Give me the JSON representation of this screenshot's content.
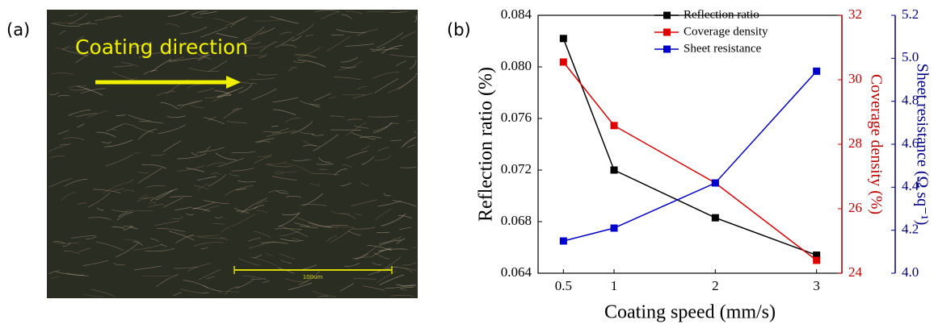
{
  "panel_a": {
    "label": "(a)",
    "annotation": "Coating direction",
    "scale_bar": "100um"
  },
  "chart_data": {
    "type": "line",
    "panel_label": "(b)",
    "xlabel": "Coating speed (mm/s)",
    "ylabel": "Reflection ratio (%)",
    "y2label": "Coverage density (%)",
    "y3label": "Sheet resistance (Ω sq⁻¹)",
    "x": [
      0.5,
      1,
      2,
      3
    ],
    "xlim": [
      0.25,
      3.25
    ],
    "xticks": [
      0.5,
      1,
      2,
      3
    ],
    "ylim": [
      0.064,
      0.084
    ],
    "yticks": [
      0.064,
      0.068,
      0.072,
      0.076,
      {
        "value": 0.08,
        "label": "0.080"
      },
      0.084
    ],
    "y2lim": [
      24,
      32
    ],
    "y2ticks": [
      24,
      26,
      28,
      30,
      32
    ],
    "y2color": "#c00000",
    "y3lim": [
      4.0,
      5.2
    ],
    "y3ticks": [
      {
        "value": 4.0,
        "label": "4.0"
      },
      {
        "value": 4.2,
        "label": "4.2"
      },
      {
        "value": 4.4,
        "label": "4.4"
      },
      {
        "value": 4.6,
        "label": "4.6"
      },
      {
        "value": 4.8,
        "label": "4.8"
      },
      {
        "value": 5.0,
        "label": "5.0"
      },
      {
        "value": 5.2,
        "label": "5.2"
      }
    ],
    "y3color": "#00008b",
    "legend": "top-right",
    "series": [
      {
        "name": "Reflection ratio",
        "color": "#000000",
        "values": [
          0.0822,
          0.072,
          0.0683,
          0.0654
        ]
      },
      {
        "name": "Coverage density",
        "color": "#e00000",
        "axis": "y2",
        "values": [
          30.55,
          28.58,
          26.8,
          24.4
        ]
      },
      {
        "name": "Sheet resistance",
        "color": "#0000cc",
        "axis": "y3",
        "values": [
          4.15,
          4.21,
          4.42,
          4.94
        ]
      }
    ]
  }
}
